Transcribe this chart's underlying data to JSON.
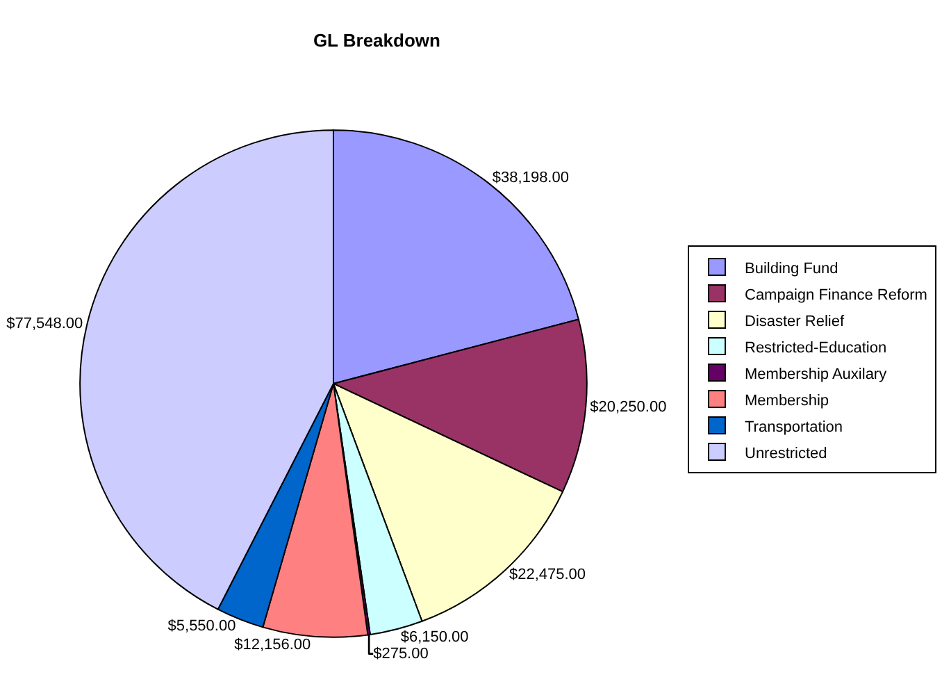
{
  "chart_data": {
    "type": "pie",
    "title": "GL Breakdown",
    "categories": [
      "Building Fund",
      "Campaign Finance Reform",
      "Disaster Relief",
      "Restricted-Education",
      "Membership Auxilary",
      "Membership",
      "Transportation",
      "Unrestricted"
    ],
    "values": [
      38198,
      20250,
      22475,
      6150,
      275,
      12156,
      5550,
      77548
    ],
    "value_labels": [
      "$38,198.00",
      "$20,250.00",
      "$22,475.00",
      "$6,150.00",
      "$275.00",
      "$12,156.00",
      "$5,550.00",
      "$77,548.00"
    ],
    "colors": [
      "#9999ff",
      "#993366",
      "#ffffcc",
      "#ccffff",
      "#660066",
      "#ff8080",
      "#0066cc",
      "#ccccff"
    ],
    "legend": "right"
  }
}
